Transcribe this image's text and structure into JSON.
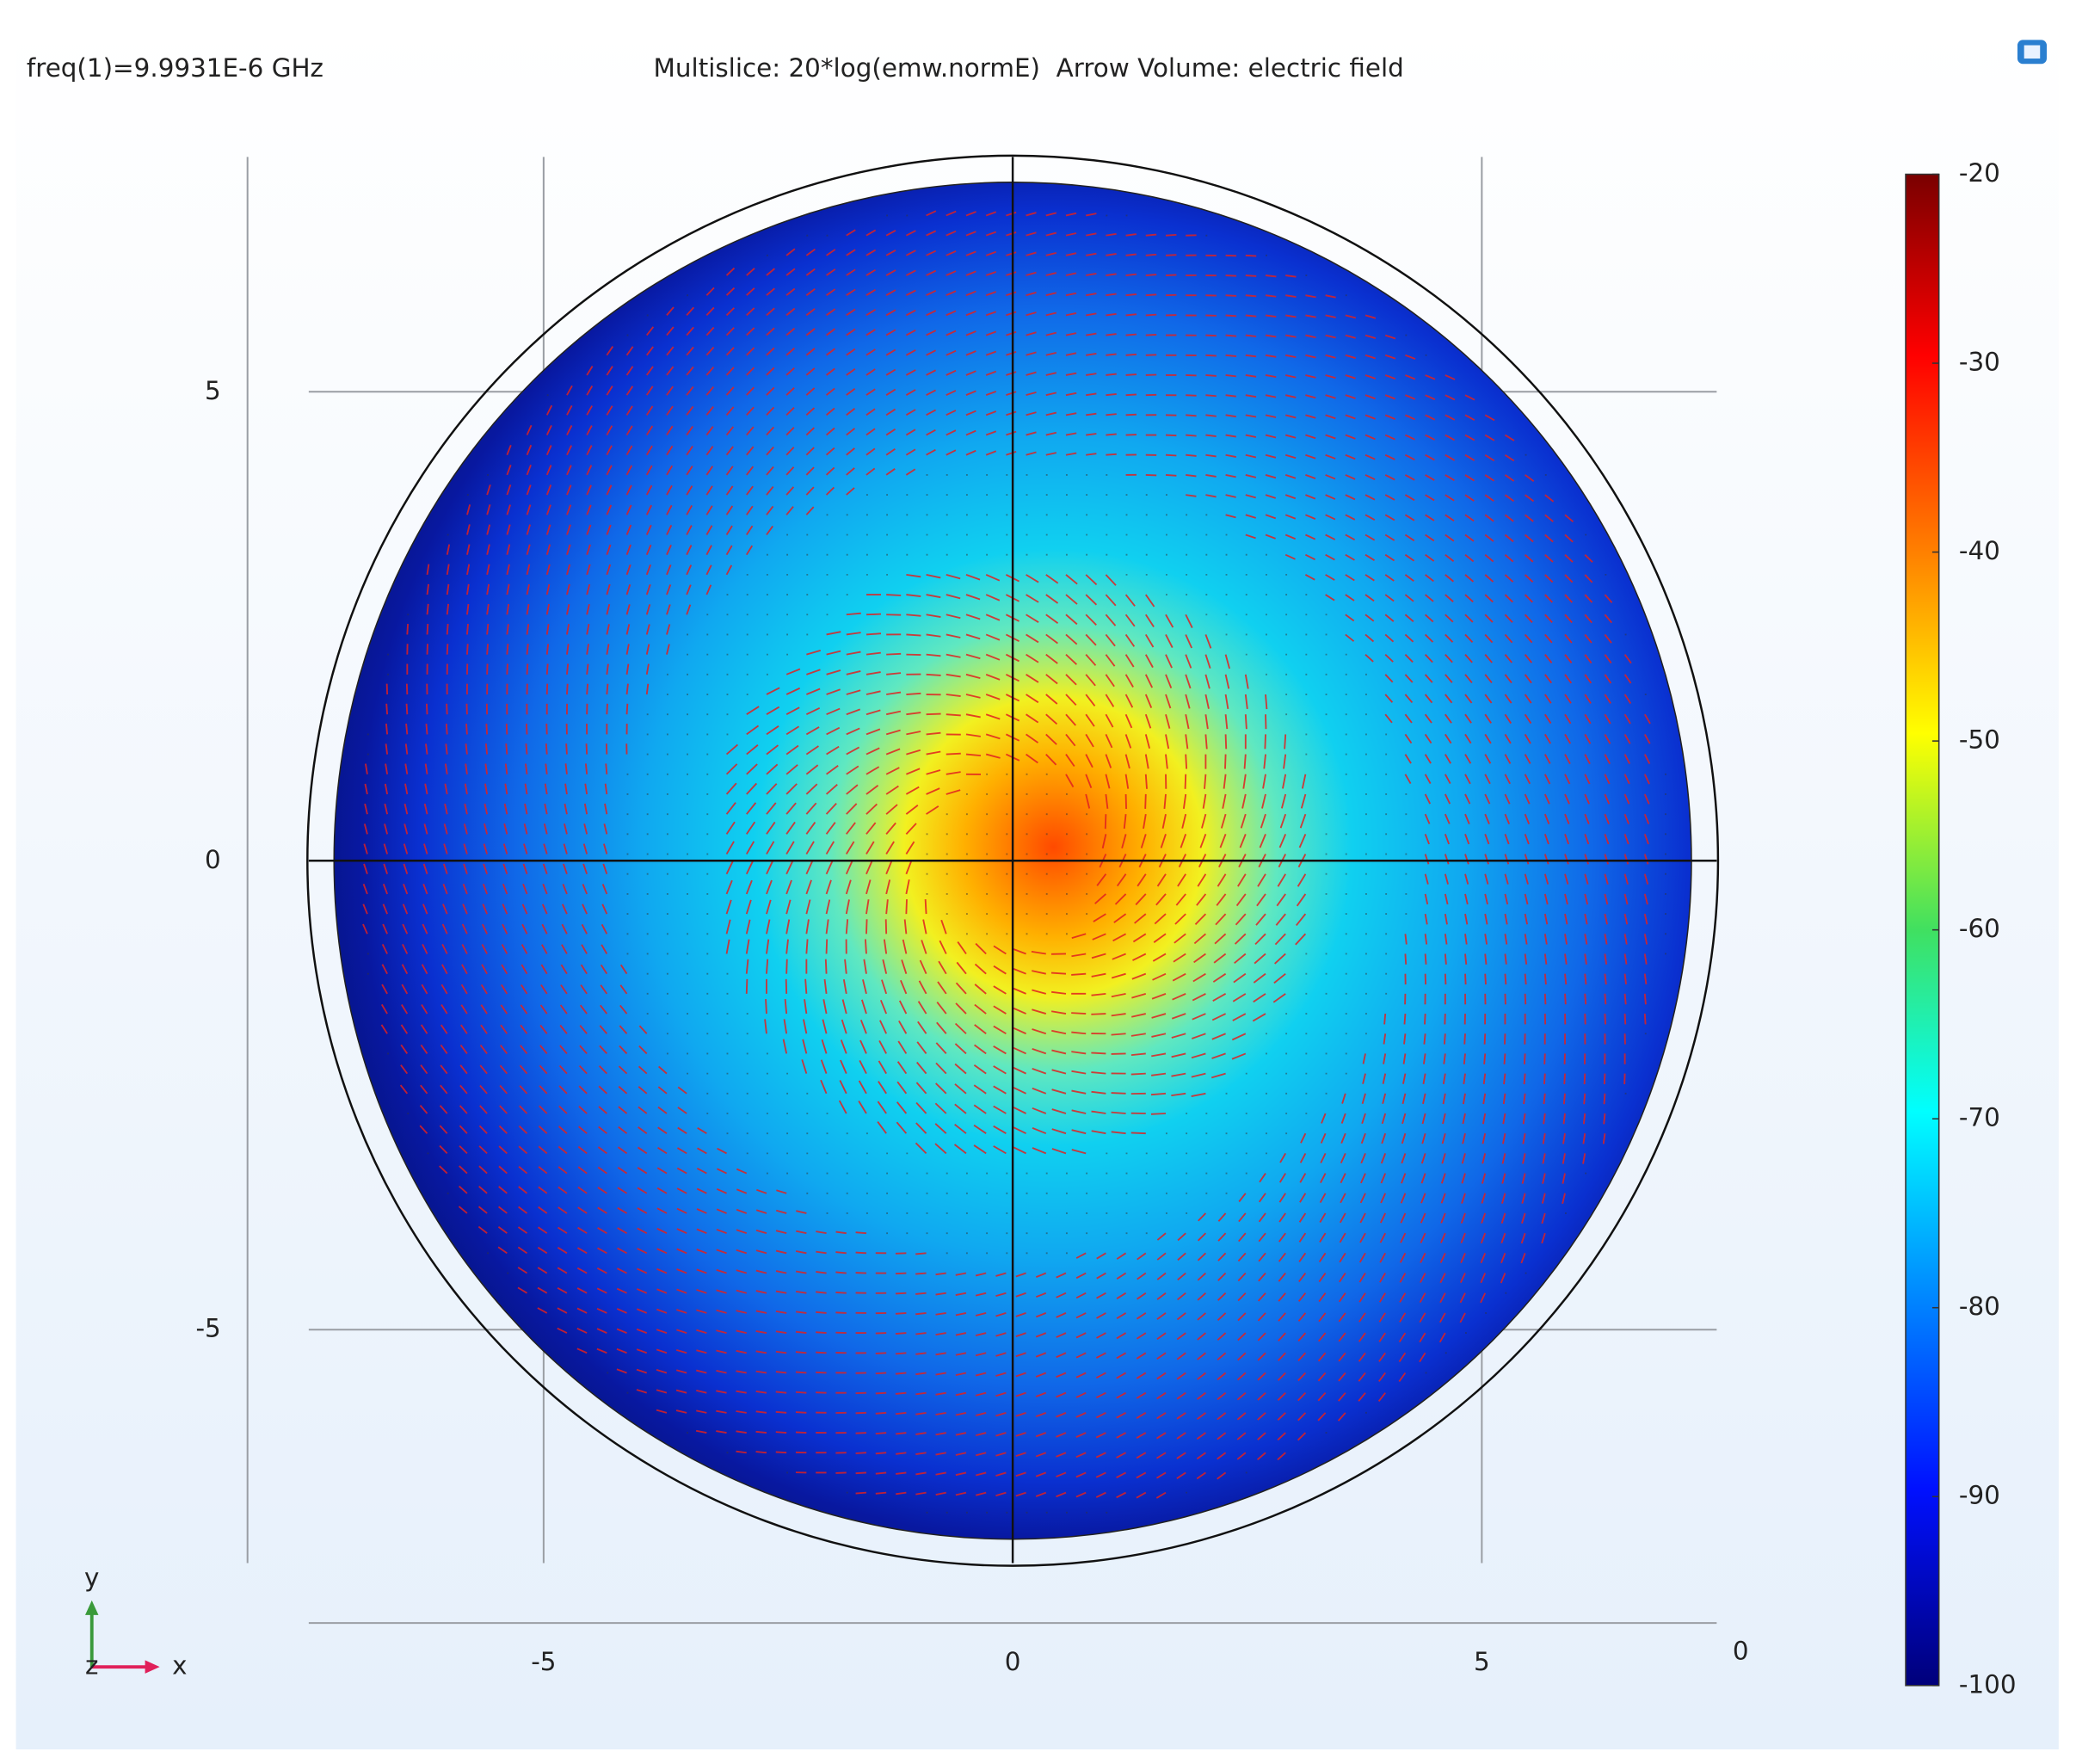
{
  "header": {
    "frequency": "freq(1)=9.9931E-6 GHz",
    "title": "Multislice: 20*log(emw.normE)  Arrow Volume: electric field"
  },
  "plot": {
    "xticks": [
      -5,
      0,
      5
    ],
    "yticks": [
      5,
      0,
      -5
    ],
    "z_tick": 0
  },
  "colorbar": {
    "ticks": [
      -20,
      -30,
      -40,
      -50,
      -60,
      -70,
      -80,
      -90,
      -100
    ]
  },
  "axis_triad": {
    "y": "y",
    "z": "z",
    "x": "x"
  }
}
